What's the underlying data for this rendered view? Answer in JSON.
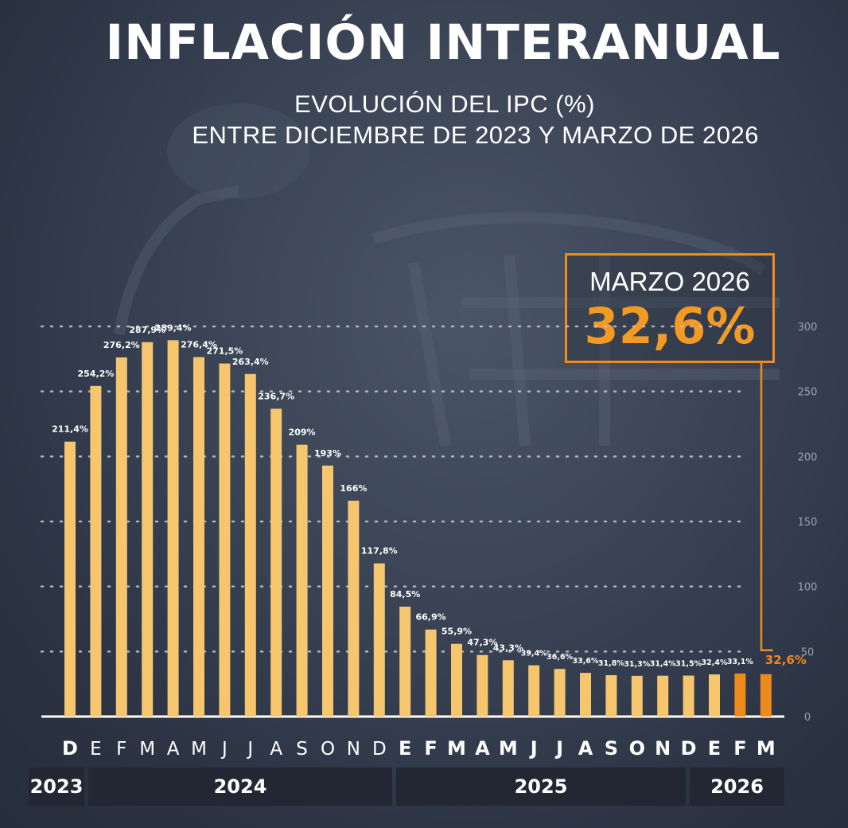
{
  "header": {
    "title": "INFLACIÓN INTERANUAL",
    "subtitle_line1": "EVOLUCIÓN DEL IPC (%)",
    "subtitle_line2": "ENTRE DICIEMBRE DE 2023 Y MARZO DE 2026"
  },
  "callout": {
    "label": "MARZO 2026",
    "value": "32,6%"
  },
  "colors": {
    "bar": "#f6c66e",
    "highlight": "#ee8a1d",
    "background": "#343d4d",
    "year_band": "#222733"
  },
  "chart_data": {
    "type": "bar",
    "title": "INFLACIÓN INTERANUAL",
    "ylim": [
      0,
      300
    ],
    "yticks": [
      "0",
      "50",
      "100",
      "150",
      "200",
      "250",
      "300"
    ],
    "grid": true,
    "categories": [
      "D",
      "E",
      "F",
      "M",
      "A",
      "M",
      "J",
      "J",
      "A",
      "S",
      "O",
      "N",
      "D",
      "E",
      "F",
      "M",
      "A",
      "M",
      "J",
      "J",
      "A",
      "S",
      "O",
      "N",
      "D",
      "E",
      "F",
      "M"
    ],
    "values": [
      211.4,
      254.2,
      276.2,
      287.9,
      289.4,
      276.4,
      271.5,
      263.4,
      236.7,
      209,
      193,
      166,
      117.8,
      84.5,
      66.9,
      55.9,
      47.3,
      43.3,
      39.4,
      36.6,
      33.6,
      31.8,
      31.3,
      31.4,
      31.5,
      32.4,
      33.1,
      32.6
    ],
    "value_labels": [
      "211,4%",
      "254,2%",
      "276,2%",
      "287,9%",
      "289,4%",
      "276,4%",
      "271,5%",
      "263,4%",
      "236,7%",
      "209%",
      "193%",
      "166%",
      "117,8%",
      "84,5%",
      "66,9%",
      "55,9%",
      "47,3%",
      "43,3%",
      "39,4%",
      "36,6%",
      "33,6%",
      "31,8%",
      "31,3%",
      "31,4%",
      "31,5%",
      "32,4%",
      "33,1%",
      "32,6%"
    ],
    "bold_categories": [
      0,
      13,
      14,
      15,
      16,
      17,
      18,
      19,
      20,
      21,
      22,
      23,
      24,
      25,
      26,
      27
    ],
    "highlighted": [
      26,
      27
    ],
    "years": [
      {
        "label": "2023",
        "from": 0,
        "to": 0
      },
      {
        "label": "2024",
        "from": 1,
        "to": 12
      },
      {
        "label": "2025",
        "from": 13,
        "to": 24
      },
      {
        "label": "2026",
        "from": 25,
        "to": 27
      }
    ]
  }
}
